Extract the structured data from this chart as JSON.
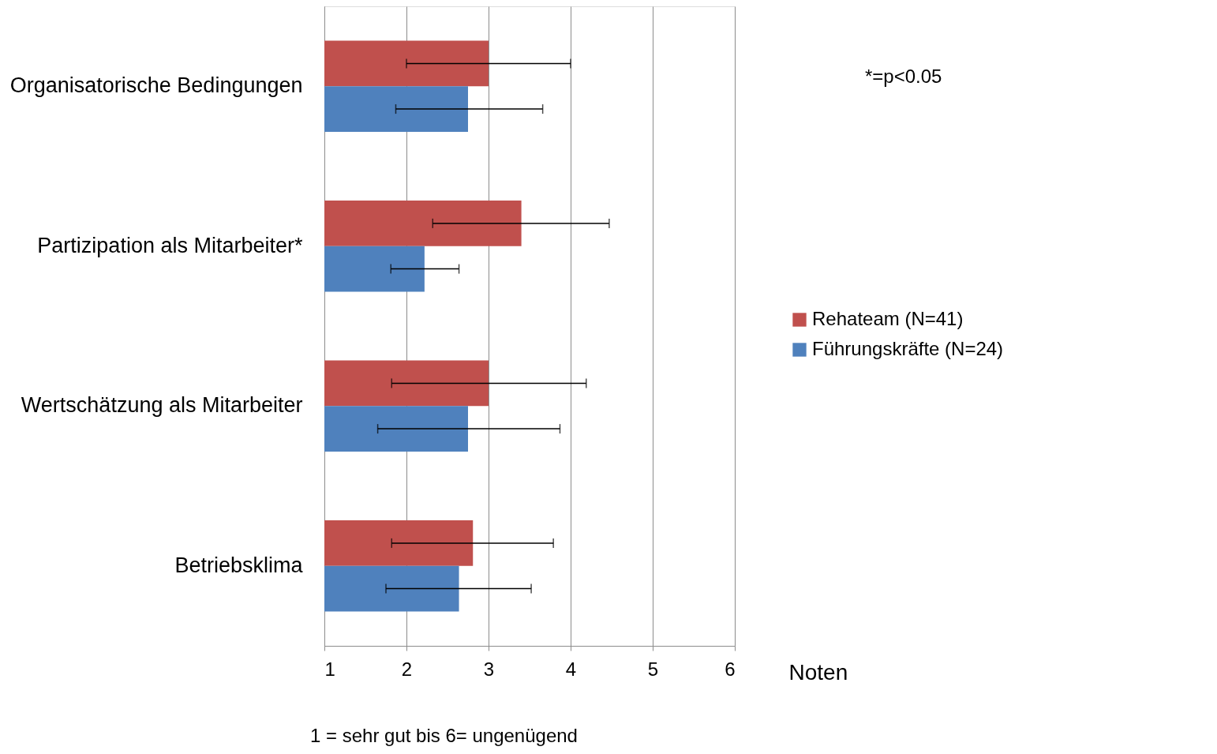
{
  "chart_data": {
    "type": "bar",
    "orientation": "horizontal",
    "categories": [
      "Organisatorische Bedingungen",
      "Partizipation als Mitarbeiter*",
      "Wertschätzung als Mitarbeiter",
      "Betriebsklima"
    ],
    "series": [
      {
        "name": "Rehateam (N=41)",
        "color": "#c0504d",
        "values": [
          3.0,
          3.4,
          3.0,
          2.81
        ],
        "errors": [
          [
            2.0,
            4.0
          ],
          [
            2.32,
            4.47
          ],
          [
            1.82,
            4.19
          ],
          [
            1.82,
            3.79
          ]
        ]
      },
      {
        "name": "Führungskräfte (N=24)",
        "color": "#4f81bd",
        "values": [
          2.75,
          2.22,
          2.75,
          2.64
        ],
        "errors": [
          [
            1.87,
            3.66
          ],
          [
            1.81,
            2.64
          ],
          [
            1.65,
            3.87
          ],
          [
            1.75,
            3.52
          ]
        ]
      }
    ],
    "xlim": [
      1,
      6
    ],
    "xticks": [
      1,
      2,
      3,
      4,
      5,
      6
    ],
    "xlabel": "Noten",
    "annotations": [
      "*=p<0.05",
      "1 = sehr gut                    bis                6= ungenügend"
    ],
    "grid": "x",
    "legend": "right"
  }
}
